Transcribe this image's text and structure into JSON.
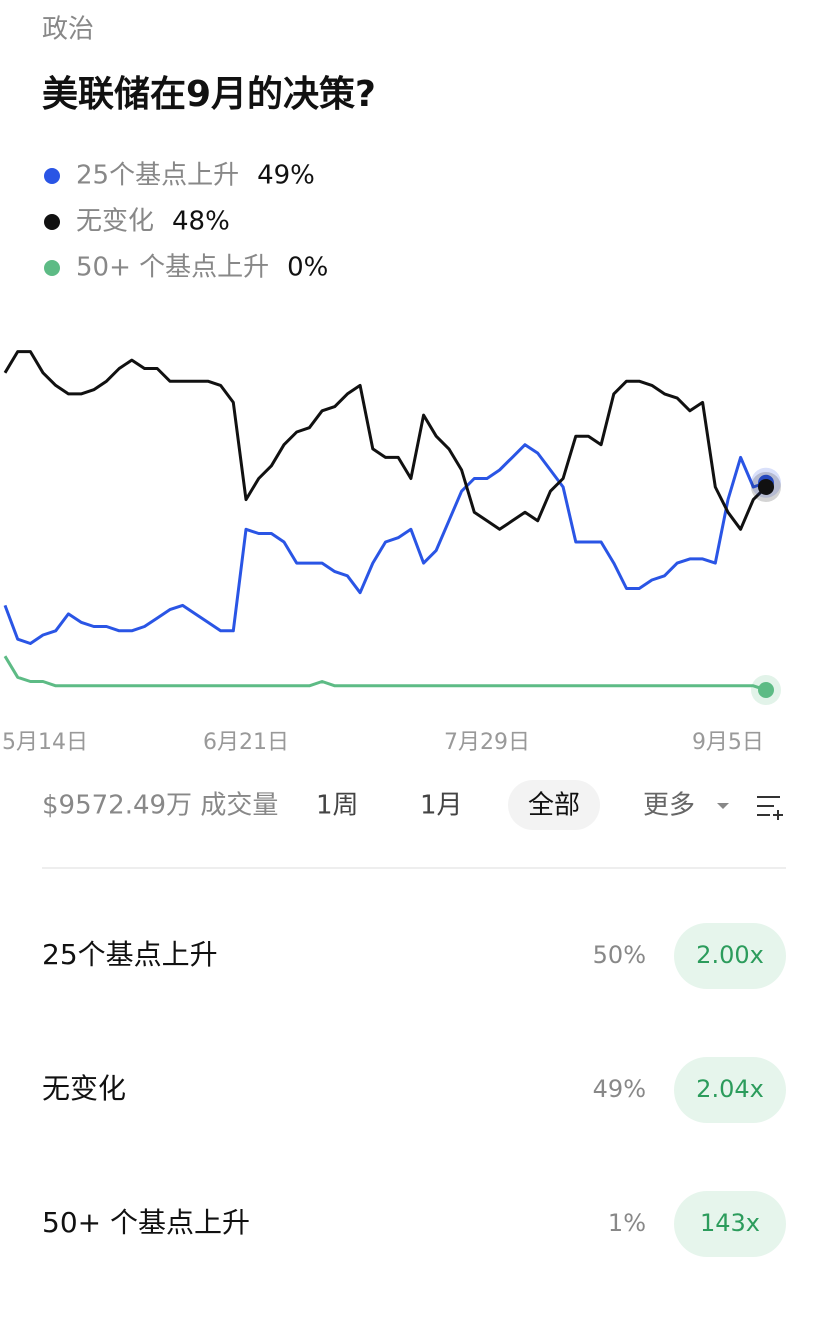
{
  "header": {
    "category": "政治",
    "title": "美联储在9月的决策?"
  },
  "chart_data": {
    "type": "line",
    "categories": [
      "5月14日",
      null,
      null,
      null,
      null,
      null,
      null,
      null,
      null,
      null,
      null,
      null,
      null,
      null,
      null,
      null,
      null,
      null,
      null,
      "6月21日",
      null,
      null,
      null,
      null,
      null,
      null,
      null,
      null,
      null,
      null,
      null,
      null,
      null,
      null,
      null,
      null,
      null,
      null,
      "7月29日",
      null,
      null,
      null,
      null,
      null,
      null,
      null,
      null,
      null,
      null,
      null,
      null,
      null,
      null,
      null,
      null,
      null,
      null,
      "9月5日",
      null,
      null,
      null
    ],
    "ylim": [
      0,
      100
    ],
    "series": [
      {
        "name": "25个基点上升",
        "latest": "49%",
        "color": "#2a55e5",
        "values": [
          20,
          12,
          11,
          13,
          14,
          18,
          16,
          15,
          15,
          14,
          14,
          15,
          17,
          19,
          20,
          18,
          16,
          14,
          14,
          38,
          37,
          37,
          35,
          30,
          30,
          30,
          28,
          27,
          23,
          30,
          35,
          36,
          38,
          30,
          33,
          40,
          47,
          50,
          50,
          52,
          55,
          58,
          56,
          52,
          48,
          35,
          35,
          35,
          30,
          24,
          24,
          26,
          27,
          30,
          31,
          31,
          30,
          45,
          55,
          48,
          49
        ]
      },
      {
        "name": "无变化",
        "latest": "48%",
        "color": "#111111",
        "values": [
          75,
          80,
          80,
          75,
          72,
          70,
          70,
          71,
          73,
          76,
          78,
          76,
          76,
          73,
          73,
          73,
          73,
          72,
          68,
          45,
          50,
          53,
          58,
          61,
          62,
          66,
          67,
          70,
          72,
          57,
          55,
          55,
          50,
          65,
          60,
          57,
          52,
          42,
          40,
          38,
          40,
          42,
          40,
          47,
          50,
          60,
          60,
          58,
          70,
          73,
          73,
          72,
          70,
          69,
          66,
          68,
          48,
          42,
          38,
          45,
          48
        ]
      },
      {
        "name": "50+ 个基点上升",
        "latest": "0%",
        "color": "#5dbb85",
        "values": [
          8,
          3,
          2,
          2,
          1,
          1,
          1,
          1,
          1,
          1,
          1,
          1,
          1,
          1,
          1,
          1,
          1,
          1,
          1,
          1,
          1,
          1,
          1,
          1,
          1,
          2,
          1,
          1,
          1,
          1,
          1,
          1,
          1,
          1,
          1,
          1,
          1,
          1,
          1,
          1,
          1,
          1,
          1,
          1,
          1,
          1,
          1,
          1,
          1,
          1,
          1,
          1,
          1,
          1,
          1,
          1,
          1,
          1,
          1,
          1,
          0
        ]
      }
    ]
  },
  "controls": {
    "volume": "$9572.49万 成交量",
    "ranges": [
      "1周",
      "1月",
      "全部"
    ],
    "more": "更多"
  },
  "outcomes": [
    {
      "name": "25个基点上升",
      "probability": "50%",
      "payout": "2.00x"
    },
    {
      "name": "无变化",
      "probability": "49%",
      "payout": "2.04x"
    },
    {
      "name": "50+ 个基点上升",
      "probability": "1%",
      "payout": "143x"
    }
  ]
}
